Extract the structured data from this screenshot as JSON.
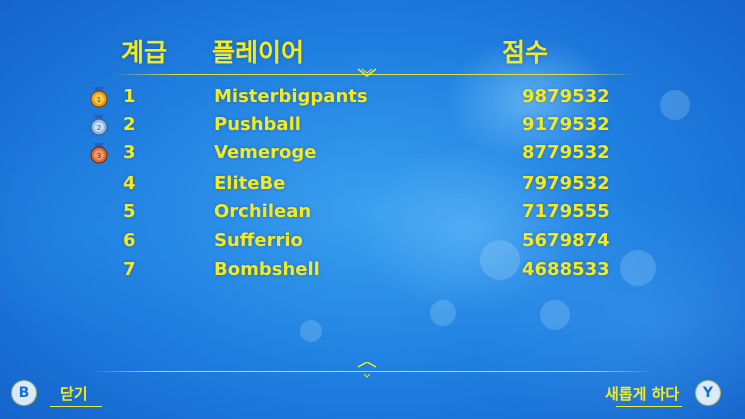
{
  "headers": {
    "rank": "계급",
    "player": "플레이어",
    "score": "점수"
  },
  "rows": [
    {
      "rank": "1",
      "name": "Misterbigpants",
      "score": "9879532",
      "medal": "gold",
      "medal_number": "1"
    },
    {
      "rank": "2",
      "name": "Pushball",
      "score": "9179532",
      "medal": "silver",
      "medal_number": "2"
    },
    {
      "rank": "3",
      "name": "Vemeroge",
      "score": "8779532",
      "medal": "bronze",
      "medal_number": "3"
    },
    {
      "rank": "4",
      "name": "EliteBe",
      "score": "7979532"
    },
    {
      "rank": "5",
      "name": "Orchilean",
      "score": "7179555"
    },
    {
      "rank": "6",
      "name": "Sufferrio",
      "score": "5679874"
    },
    {
      "rank": "7",
      "name": "Bombshell",
      "score": "4688533"
    }
  ],
  "footer": {
    "close_button_glyph": "B",
    "close_label": "닫기",
    "refresh_label": "새롭게 하다",
    "refresh_button_glyph": "Y"
  },
  "colors": {
    "text": "#f3ea20",
    "background": "#1f7fe0",
    "gold": "#e8a21c",
    "silver": "#8fb8e8",
    "bronze": "#d9703a"
  }
}
